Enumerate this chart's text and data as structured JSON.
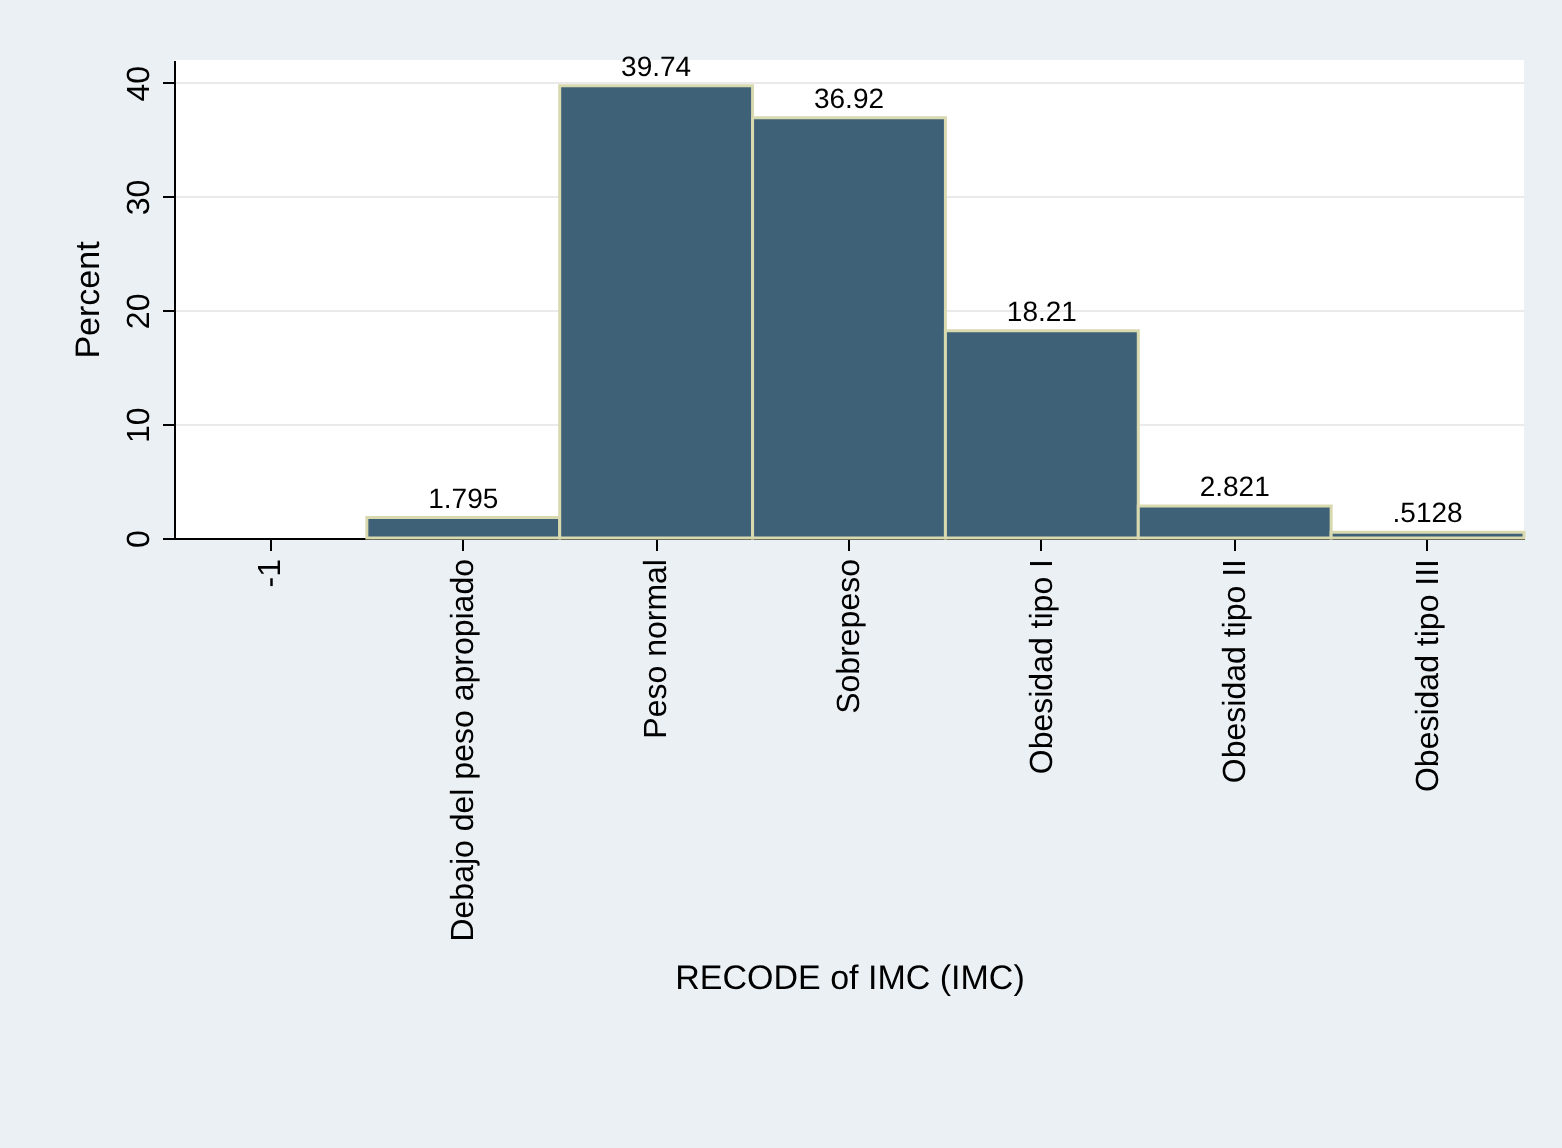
{
  "chart_data": {
    "type": "bar",
    "xlabel": "RECODE of IMC (IMC)",
    "ylabel": "Percent",
    "categories": [
      "-1",
      "Debajo del peso apropiado",
      "Peso normal",
      "Sobrepeso",
      "Obesidad tipo I",
      "Obesidad tipo II",
      "Obesidad tipo III"
    ],
    "values": [
      null,
      1.795,
      39.74,
      36.92,
      18.21,
      2.821,
      0.5128
    ],
    "value_labels": [
      null,
      "1.795",
      "39.74",
      "36.92",
      "18.21",
      "2.821",
      ".5128"
    ],
    "color": "#3e6178",
    "ylim": [
      0,
      42
    ],
    "yticks": [
      0,
      10,
      20,
      30,
      40
    ],
    "grid": "y"
  }
}
